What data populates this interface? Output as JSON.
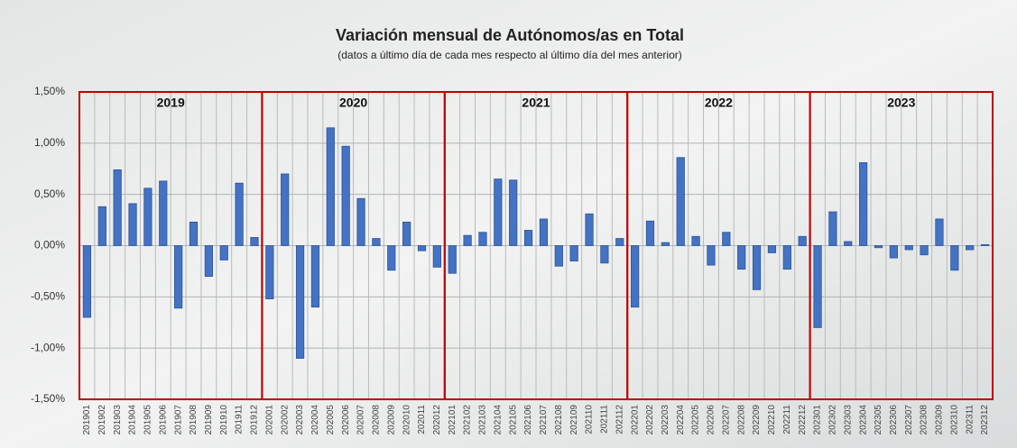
{
  "chart_data": {
    "type": "bar",
    "title": "Variación mensual de Autónomos/as en Total",
    "subtitle": "(datos a último día de cada mes respecto al último día del mes anterior)",
    "categories": [
      "201901",
      "201902",
      "201903",
      "201904",
      "201905",
      "201906",
      "201907",
      "201908",
      "201909",
      "201910",
      "201911",
      "201912",
      "202001",
      "202002",
      "202003",
      "202004",
      "202005",
      "202006",
      "202007",
      "202008",
      "202009",
      "202010",
      "202011",
      "202012",
      "202101",
      "202102",
      "202103",
      "202104",
      "202105",
      "202106",
      "202107",
      "202108",
      "202109",
      "202110",
      "202111",
      "202112",
      "202201",
      "202202",
      "202203",
      "202204",
      "202205",
      "202206",
      "202207",
      "202208",
      "202209",
      "202210",
      "202211",
      "202212",
      "202301",
      "202302",
      "202303",
      "202304",
      "202305",
      "202306",
      "202307",
      "202308",
      "202309",
      "202310",
      "202311",
      "202312"
    ],
    "values": [
      -0.7,
      0.38,
      0.74,
      0.41,
      0.56,
      0.63,
      -0.61,
      0.23,
      -0.3,
      -0.14,
      0.61,
      0.08,
      -0.52,
      0.7,
      -1.1,
      -0.6,
      1.15,
      0.97,
      0.46,
      0.07,
      -0.24,
      0.23,
      -0.05,
      -0.21,
      -0.27,
      0.1,
      0.13,
      0.65,
      0.64,
      0.15,
      0.26,
      -0.2,
      -0.15,
      0.31,
      -0.17,
      0.07,
      -0.6,
      0.24,
      0.03,
      0.86,
      0.09,
      -0.19,
      0.13,
      -0.23,
      -0.43,
      -0.07,
      -0.23,
      0.09,
      -0.8,
      0.33,
      0.04,
      0.81,
      -0.02,
      -0.12,
      -0.04,
      -0.09,
      0.26,
      -0.24,
      -0.04,
      0.01
    ],
    "color": "#4472c4",
    "year_groups": [
      "2019",
      "2020",
      "2021",
      "2022",
      "2023"
    ],
    "group_color": "#c00000",
    "ylim": [
      -1.5,
      1.5
    ],
    "yticks": [
      {
        "value": -1.5,
        "label": "-1,50%"
      },
      {
        "value": -1.0,
        "label": "-1,00%"
      },
      {
        "value": -0.5,
        "label": "-0,50%"
      },
      {
        "value": 0,
        "label": "0,00%"
      },
      {
        "value": 0.5,
        "label": "0,50%"
      },
      {
        "value": 1.0,
        "label": "1,00%"
      },
      {
        "value": 1.5,
        "label": "1,50%"
      }
    ],
    "grid": true
  }
}
